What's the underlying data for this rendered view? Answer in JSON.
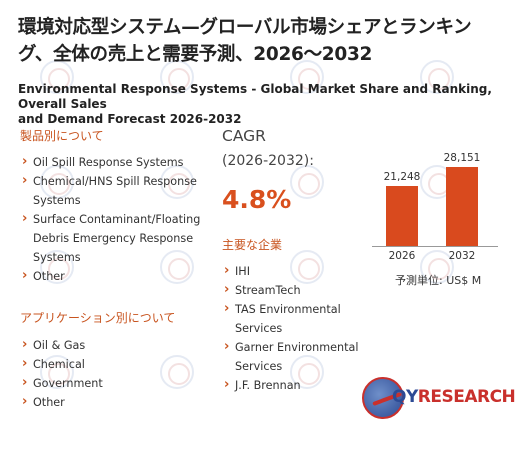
{
  "header": {
    "title_line1": "環境対応型システム—グローバル市場シェアとランキン",
    "title_line2": "グ、全体の売上と需要予測、2026～2032",
    "subtitle_line1": "Environmental Response Systems - Global Market Share and Ranking, Overall Sales",
    "subtitle_line2": "and Demand Forecast 2026-2032"
  },
  "product_section": {
    "heading": "製品別について",
    "items": [
      "Oil Spill Response Systems",
      "Chemical/HNS Spill Response Systems",
      "Surface Contaminant/Floating Debris Emergency Response Systems",
      "Other"
    ]
  },
  "application_section": {
    "heading": "アプリケーション別について",
    "items": [
      "Oil & Gas",
      "Chemical",
      "Government",
      "Other"
    ]
  },
  "cagr": {
    "label": "CAGR",
    "period": "(2026-2032):",
    "value": "4.8%"
  },
  "companies_section": {
    "heading": "主要な企業",
    "items": [
      "IHI",
      "StreamTech",
      "TAS Environmental Services",
      "Garner Environmental Services",
      "J.F. Brennan"
    ]
  },
  "chart_data": {
    "type": "bar",
    "categories": [
      "2026",
      "2032"
    ],
    "values": [
      21248,
      28151
    ],
    "value_labels": [
      "21,248",
      "28,151"
    ],
    "color": "#d94a1e",
    "ylim": [
      0,
      32000
    ],
    "unit_label": "予測単位:  US$ M"
  },
  "logo": {
    "text_primary": "QY",
    "text_secondary": "RESEARCH",
    "icon": "globe-icon"
  }
}
